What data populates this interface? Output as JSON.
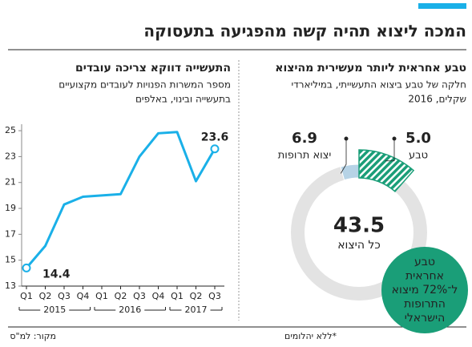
{
  "title": "המכה ליצוא תהיה קשה מהפגיעה בתעסוקה",
  "source": "מקור: למ\"ס",
  "chart_data": [
    {
      "type": "line",
      "title": "התעשייה דווקא צריכה עובדים",
      "subtitle": [
        "מספר המשרות הפנויות לעובדים מקצועיים",
        "בתעשייה ובינוי, באלפים"
      ],
      "groups": [
        {
          "label": "2015",
          "categories": [
            "Q1",
            "Q2",
            "Q3",
            "Q4"
          ]
        },
        {
          "label": "2016",
          "categories": [
            "Q1",
            "Q2",
            "Q3",
            "Q4"
          ]
        },
        {
          "label": "2017",
          "categories": [
            "Q1",
            "Q2",
            "Q3"
          ]
        }
      ],
      "values": [
        14.4,
        16.1,
        19.3,
        19.9,
        20.0,
        20.1,
        23.0,
        24.8,
        24.9,
        21.1,
        23.6
      ],
      "color": "#1ab0e8",
      "ylim": [
        13,
        25.5
      ],
      "yticks": [
        13,
        15,
        17,
        19,
        21,
        23,
        25
      ]
    },
    {
      "type": "donut",
      "title": "טבע אחראית ליותר מעשירית מהיצוא",
      "subtitle": [
        "חלקה של טבע ביצוא התעשייתי, במיליארדי",
        "שקלים, 2016"
      ],
      "categories": [
        "טבע",
        "יצוא תרופות"
      ],
      "values": [
        5.0,
        6.9
      ],
      "value_labels": [
        "5.0",
        "6.9"
      ],
      "colors": [
        "#1a9e78",
        "#b6d3e6"
      ],
      "label_colors": [
        "#1a9e78",
        "#9dbdd2"
      ],
      "total": 43.5,
      "total_label": "כל היצוא",
      "annotation": [
        "טבע",
        "אחראית",
        "ל־72% מיצוא",
        "התרופות",
        "הישראלי"
      ],
      "footnote": "*ללא יהלומים"
    }
  ]
}
